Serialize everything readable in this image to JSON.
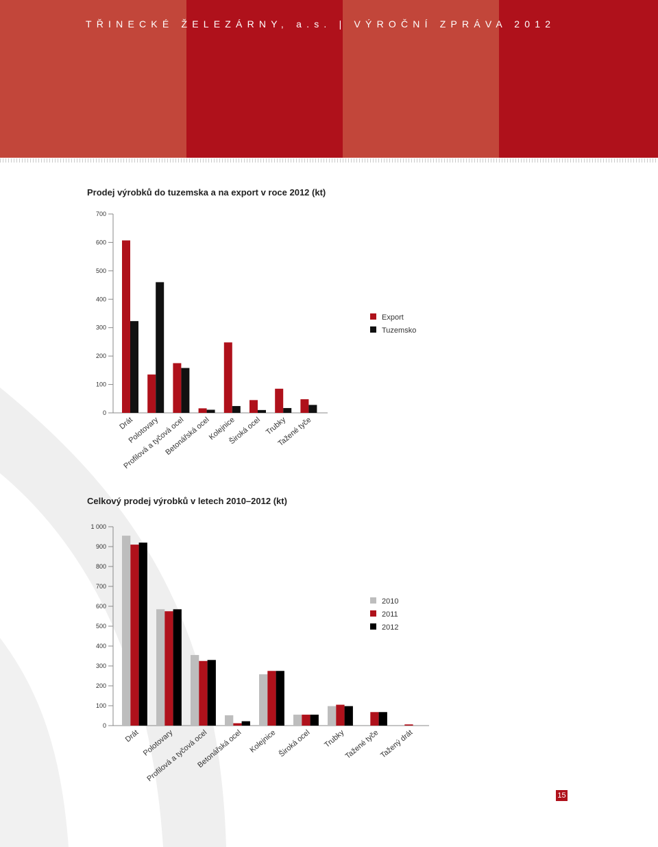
{
  "header": {
    "title": "TŘINECKÉ ŽELEZÁRNY, a.s. | VÝROČNÍ ZPRÁVA 2012",
    "band_colors": [
      "#c2463a",
      "#af111b",
      "#c2463a",
      "#af111b"
    ]
  },
  "page": {
    "number": "15"
  },
  "colors": {
    "export": "#af111b",
    "tuzemsko": "#111111",
    "y2010": "#bdbdbd",
    "y2011": "#af111b",
    "y2012": "#000000"
  },
  "chart_data": [
    {
      "type": "bar",
      "title": "Prodej výrobků do tuzemska a na export v roce 2012 (kt)",
      "categories": [
        "Drát",
        "Polotovary",
        "Profilová a tyčová ocel",
        "Betonářská ocel",
        "Kolejnice",
        "Široká ocel",
        "Trubky",
        "Tažené tyče"
      ],
      "series": [
        {
          "name": "Export",
          "color": "#af111b",
          "values": [
            607,
            135,
            175,
            16,
            248,
            45,
            85,
            48
          ]
        },
        {
          "name": "Tuzemsko",
          "color": "#111111",
          "values": [
            323,
            460,
            158,
            11,
            24,
            10,
            17,
            28
          ]
        }
      ],
      "yticks": [
        0,
        100,
        200,
        300,
        400,
        500,
        600,
        700
      ],
      "ylim": [
        0,
        700
      ],
      "legend": "right"
    },
    {
      "type": "bar",
      "title": "Celkový prodej výrobků v letech 2010–2012 (kt)",
      "categories": [
        "Drát",
        "Polotovary",
        "Profilová a tyčová ocel",
        "Betonářská ocel",
        "Kolejnice",
        "Široká ocel",
        "Trubky",
        "Tažené tyče",
        "Tažený drát"
      ],
      "series": [
        {
          "name": "2010",
          "color": "#bdbdbd",
          "values": [
            955,
            585,
            355,
            52,
            258,
            55,
            98,
            0,
            0
          ]
        },
        {
          "name": "2011",
          "color": "#af111b",
          "values": [
            910,
            575,
            325,
            12,
            275,
            55,
            105,
            68,
            6
          ]
        },
        {
          "name": "2012",
          "color": "#000000",
          "values": [
            920,
            585,
            330,
            22,
            275,
            55,
            98,
            68,
            0
          ]
        }
      ],
      "yticks": [
        0,
        100,
        200,
        300,
        400,
        500,
        600,
        700,
        800,
        900,
        1000
      ],
      "yticklabels": [
        "0",
        "100",
        "200",
        "300",
        "400",
        "500",
        "600",
        "700",
        "800",
        "900",
        "1 000"
      ],
      "ylim": [
        0,
        1000
      ],
      "legend": "right"
    }
  ]
}
